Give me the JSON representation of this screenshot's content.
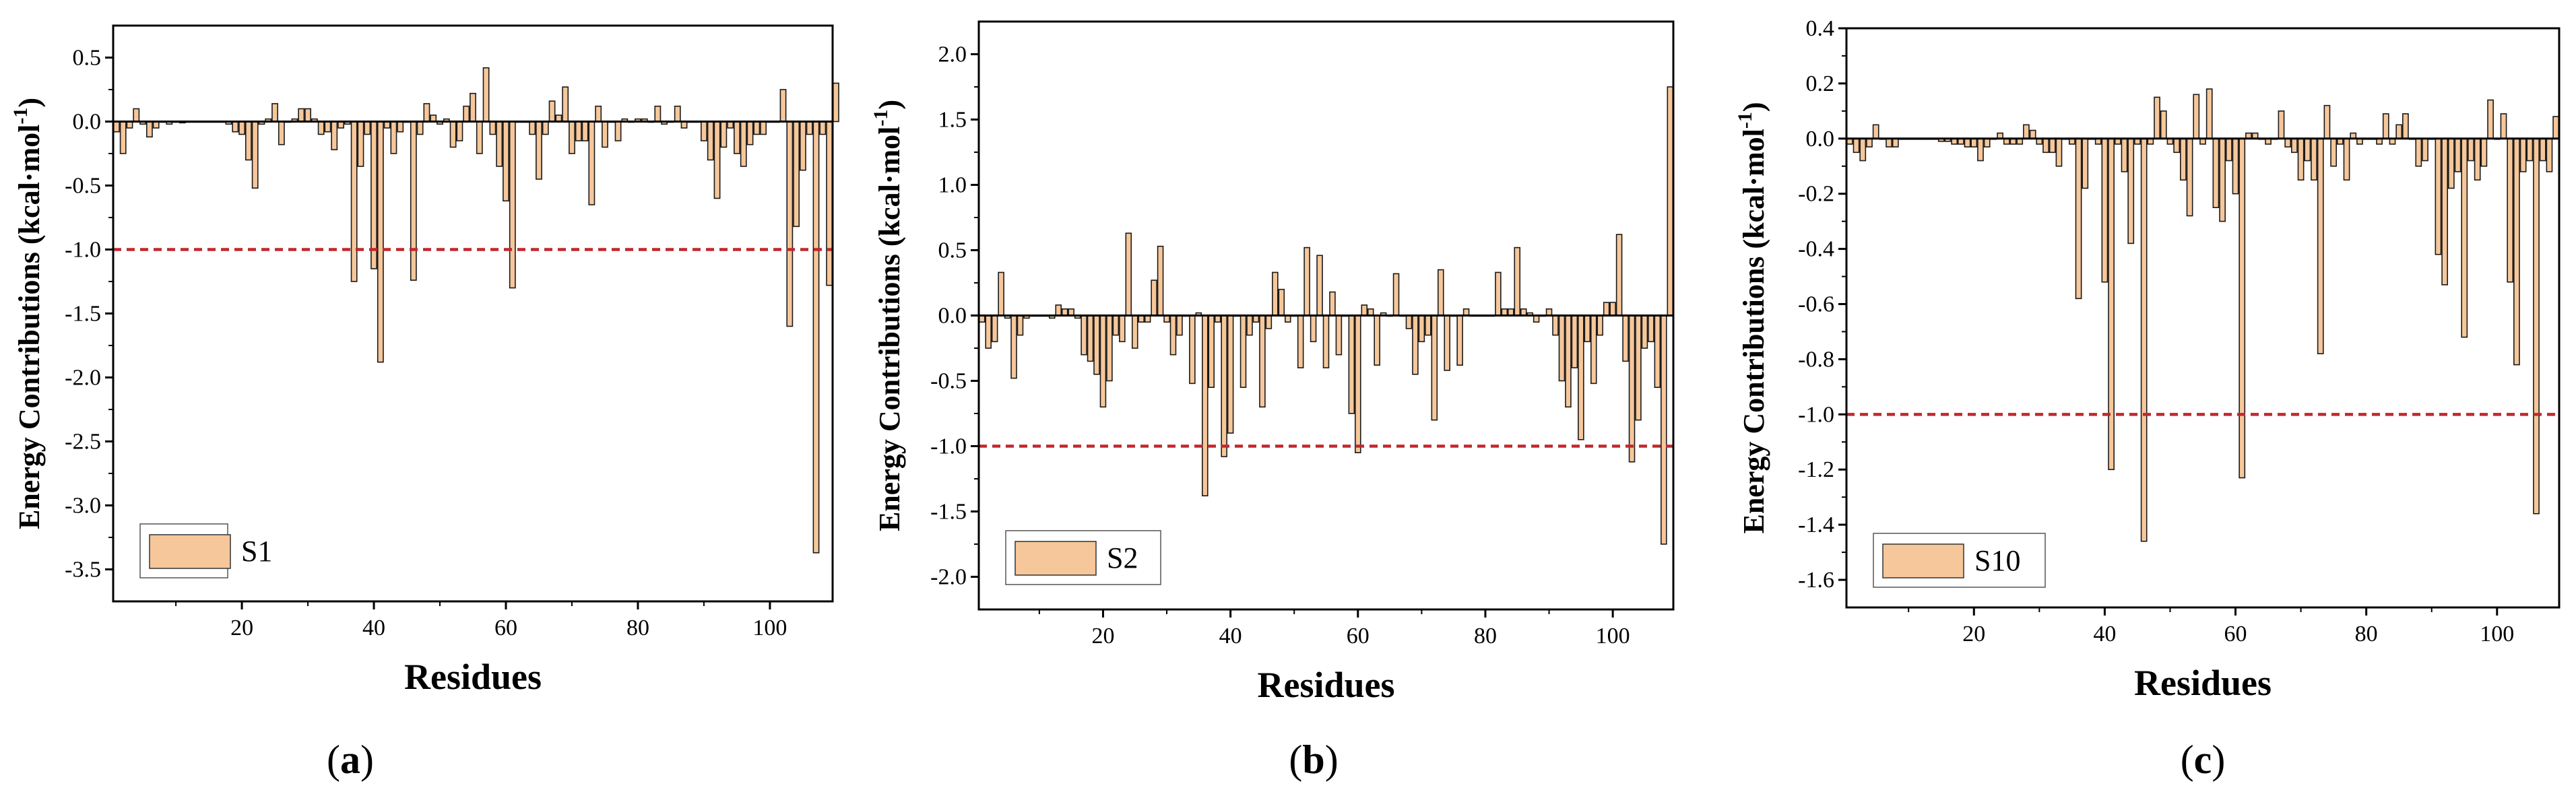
{
  "chart_data": [
    {
      "panel": "a",
      "panel_label": "(a)",
      "panel_letter": "a",
      "type": "bar",
      "legend": "S1",
      "xlabel": "Residues",
      "ylabel": "Energy Contributions (kcal·mol",
      "ylabel_sup": "-1",
      "ylabel_close": ")",
      "xlim": [
        1,
        109
      ],
      "ylim": [
        -3.75,
        0.75
      ],
      "xticks": [
        20,
        40,
        60,
        80,
        100
      ],
      "yticks": [
        0.5,
        0.0,
        -0.5,
        -1.0,
        -1.5,
        -2.0,
        -2.5,
        -3.0,
        -3.5
      ],
      "ytick_labels": [
        "0.5",
        "0.0",
        "-0.5",
        "-1.0",
        "-1.5",
        "-2.0",
        "-2.5",
        "-3.0",
        "-3.5"
      ],
      "threshold": -1.0,
      "bar_color": "#F6C79A",
      "threshold_color": "#C0282D",
      "values": [
        -0.08,
        -0.25,
        -0.05,
        0.1,
        -0.02,
        -0.12,
        -0.05,
        0.0,
        -0.02,
        0.0,
        -0.01,
        0.0,
        0.0,
        0.0,
        0.0,
        0.0,
        0.0,
        -0.02,
        -0.08,
        -0.1,
        -0.3,
        -0.52,
        -0.02,
        0.02,
        0.14,
        -0.18,
        0.0,
        0.02,
        0.1,
        0.1,
        0.02,
        -0.1,
        -0.08,
        -0.22,
        -0.05,
        -0.02,
        -1.25,
        -0.35,
        -0.1,
        -1.15,
        -1.88,
        -0.05,
        -0.25,
        -0.08,
        0.0,
        -1.24,
        -0.1,
        0.14,
        0.05,
        -0.02,
        0.02,
        -0.2,
        -0.15,
        0.12,
        0.22,
        -0.25,
        0.42,
        -0.1,
        -0.35,
        -0.62,
        -1.3,
        0.0,
        0.0,
        -0.1,
        -0.45,
        -0.1,
        0.16,
        0.05,
        0.27,
        -0.25,
        -0.15,
        -0.15,
        -0.65,
        0.12,
        -0.2,
        0.0,
        -0.15,
        0.02,
        0.0,
        0.02,
        0.02,
        0.0,
        0.12,
        -0.02,
        0.0,
        0.12,
        -0.05,
        0.0,
        0.0,
        -0.15,
        -0.3,
        -0.6,
        -0.2,
        -0.05,
        -0.25,
        -0.35,
        -0.18,
        -0.1,
        -0.1,
        0.0,
        0.0,
        0.25,
        -1.6,
        -0.82,
        -0.38,
        -0.1,
        -3.37,
        -0.1,
        -1.28,
        0.3
      ]
    },
    {
      "panel": "b",
      "panel_label": "(b)",
      "panel_letter": "b",
      "type": "bar",
      "legend": "S2",
      "xlabel": "Residues",
      "ylabel": "Energy Contributions (kcal·mol",
      "ylabel_sup": "-1",
      "ylabel_close": ")",
      "xlim": [
        1,
        109
      ],
      "ylim": [
        -2.25,
        2.25
      ],
      "xticks": [
        20,
        40,
        60,
        80,
        100
      ],
      "yticks": [
        2.0,
        1.5,
        1.0,
        0.5,
        0.0,
        -0.5,
        -1.0,
        -1.5,
        -2.0
      ],
      "ytick_labels": [
        "2.0",
        "1.5",
        "1.0",
        "0.5",
        "0.0",
        "-0.5",
        "-1.0",
        "-1.5",
        "-2.0"
      ],
      "threshold": -1.0,
      "bar_color": "#F6C79A",
      "threshold_color": "#C0282D",
      "values": [
        -0.05,
        -0.25,
        -0.2,
        0.33,
        -0.02,
        -0.48,
        -0.15,
        -0.02,
        0.0,
        0.0,
        0.0,
        -0.02,
        0.08,
        0.05,
        0.05,
        -0.02,
        -0.3,
        -0.35,
        -0.45,
        -0.7,
        -0.5,
        -0.15,
        -0.2,
        0.63,
        -0.25,
        -0.05,
        -0.05,
        0.27,
        0.53,
        -0.05,
        -0.3,
        -0.15,
        0.0,
        -0.52,
        0.02,
        -1.38,
        -0.55,
        -0.05,
        -1.08,
        -0.9,
        0.0,
        -0.55,
        -0.15,
        -0.05,
        -0.7,
        -0.1,
        0.33,
        0.2,
        -0.05,
        0.0,
        -0.4,
        0.52,
        -0.2,
        0.46,
        -0.4,
        0.18,
        -0.3,
        0.0,
        -0.75,
        -1.05,
        0.08,
        0.05,
        -0.38,
        0.02,
        0.0,
        0.32,
        0.0,
        -0.1,
        -0.45,
        -0.2,
        -0.15,
        -0.8,
        0.35,
        -0.42,
        0.0,
        -0.38,
        0.05,
        0.0,
        0.0,
        0.0,
        0.0,
        0.33,
        0.05,
        0.05,
        0.52,
        0.05,
        0.02,
        -0.05,
        0.0,
        0.05,
        -0.15,
        -0.5,
        -0.7,
        -0.4,
        -0.95,
        -0.2,
        -0.52,
        -0.15,
        0.1,
        0.1,
        0.62,
        -0.35,
        -1.12,
        -0.8,
        -0.25,
        -0.2,
        -0.55,
        -1.75,
        1.75
      ]
    },
    {
      "panel": "c",
      "panel_label": "(c)",
      "panel_letter": "c",
      "type": "bar",
      "legend": "S10",
      "xlabel": "Residues",
      "ylabel": "Energy Contributions (kcal·mol",
      "ylabel_sup": "-1",
      "ylabel_close": ")",
      "xlim": [
        1,
        109
      ],
      "ylim": [
        -1.7,
        0.4
      ],
      "xticks": [
        20,
        40,
        60,
        80,
        100
      ],
      "yticks": [
        0.4,
        0.2,
        0.0,
        -0.2,
        -0.4,
        -0.6,
        -0.8,
        -1.0,
        -1.2,
        -1.4,
        -1.6
      ],
      "ytick_labels": [
        "0.4",
        "0.2",
        "0.0",
        "-0.2",
        "-0.4",
        "-0.6",
        "-0.8",
        "-1.0",
        "-1.2",
        "-1.4",
        "-1.6"
      ],
      "threshold": -1.0,
      "bar_color": "#F6C79A",
      "threshold_color": "#C0282D",
      "values": [
        -0.02,
        -0.05,
        -0.08,
        -0.03,
        0.05,
        0.0,
        -0.03,
        -0.03,
        0.0,
        0.0,
        0.0,
        0.0,
        0.0,
        0.0,
        -0.01,
        -0.01,
        -0.02,
        -0.02,
        -0.03,
        -0.03,
        -0.08,
        -0.03,
        0.0,
        0.02,
        -0.02,
        -0.02,
        -0.02,
        0.05,
        0.03,
        -0.02,
        -0.05,
        -0.05,
        -0.1,
        0.0,
        -0.02,
        -0.58,
        -0.18,
        0.0,
        -0.02,
        -0.52,
        -1.2,
        -0.02,
        -0.12,
        -0.38,
        -0.02,
        -1.46,
        -0.02,
        0.15,
        0.1,
        -0.02,
        -0.05,
        -0.15,
        -0.28,
        0.16,
        -0.02,
        0.18,
        -0.25,
        -0.3,
        -0.08,
        -0.2,
        -1.23,
        0.02,
        0.02,
        0.0,
        -0.02,
        0.0,
        0.1,
        -0.03,
        -0.05,
        -0.15,
        -0.08,
        -0.15,
        -0.78,
        0.12,
        -0.1,
        -0.02,
        -0.15,
        0.02,
        -0.02,
        0.0,
        0.0,
        -0.02,
        0.09,
        -0.02,
        0.05,
        0.09,
        0.0,
        -0.1,
        -0.08,
        0.0,
        -0.42,
        -0.53,
        -0.18,
        -0.12,
        -0.72,
        -0.08,
        -0.15,
        -0.1,
        0.14,
        0.0,
        0.09,
        -0.52,
        -0.82,
        -0.12,
        -0.08,
        -1.36,
        -0.08,
        -0.12,
        0.08
      ]
    }
  ]
}
